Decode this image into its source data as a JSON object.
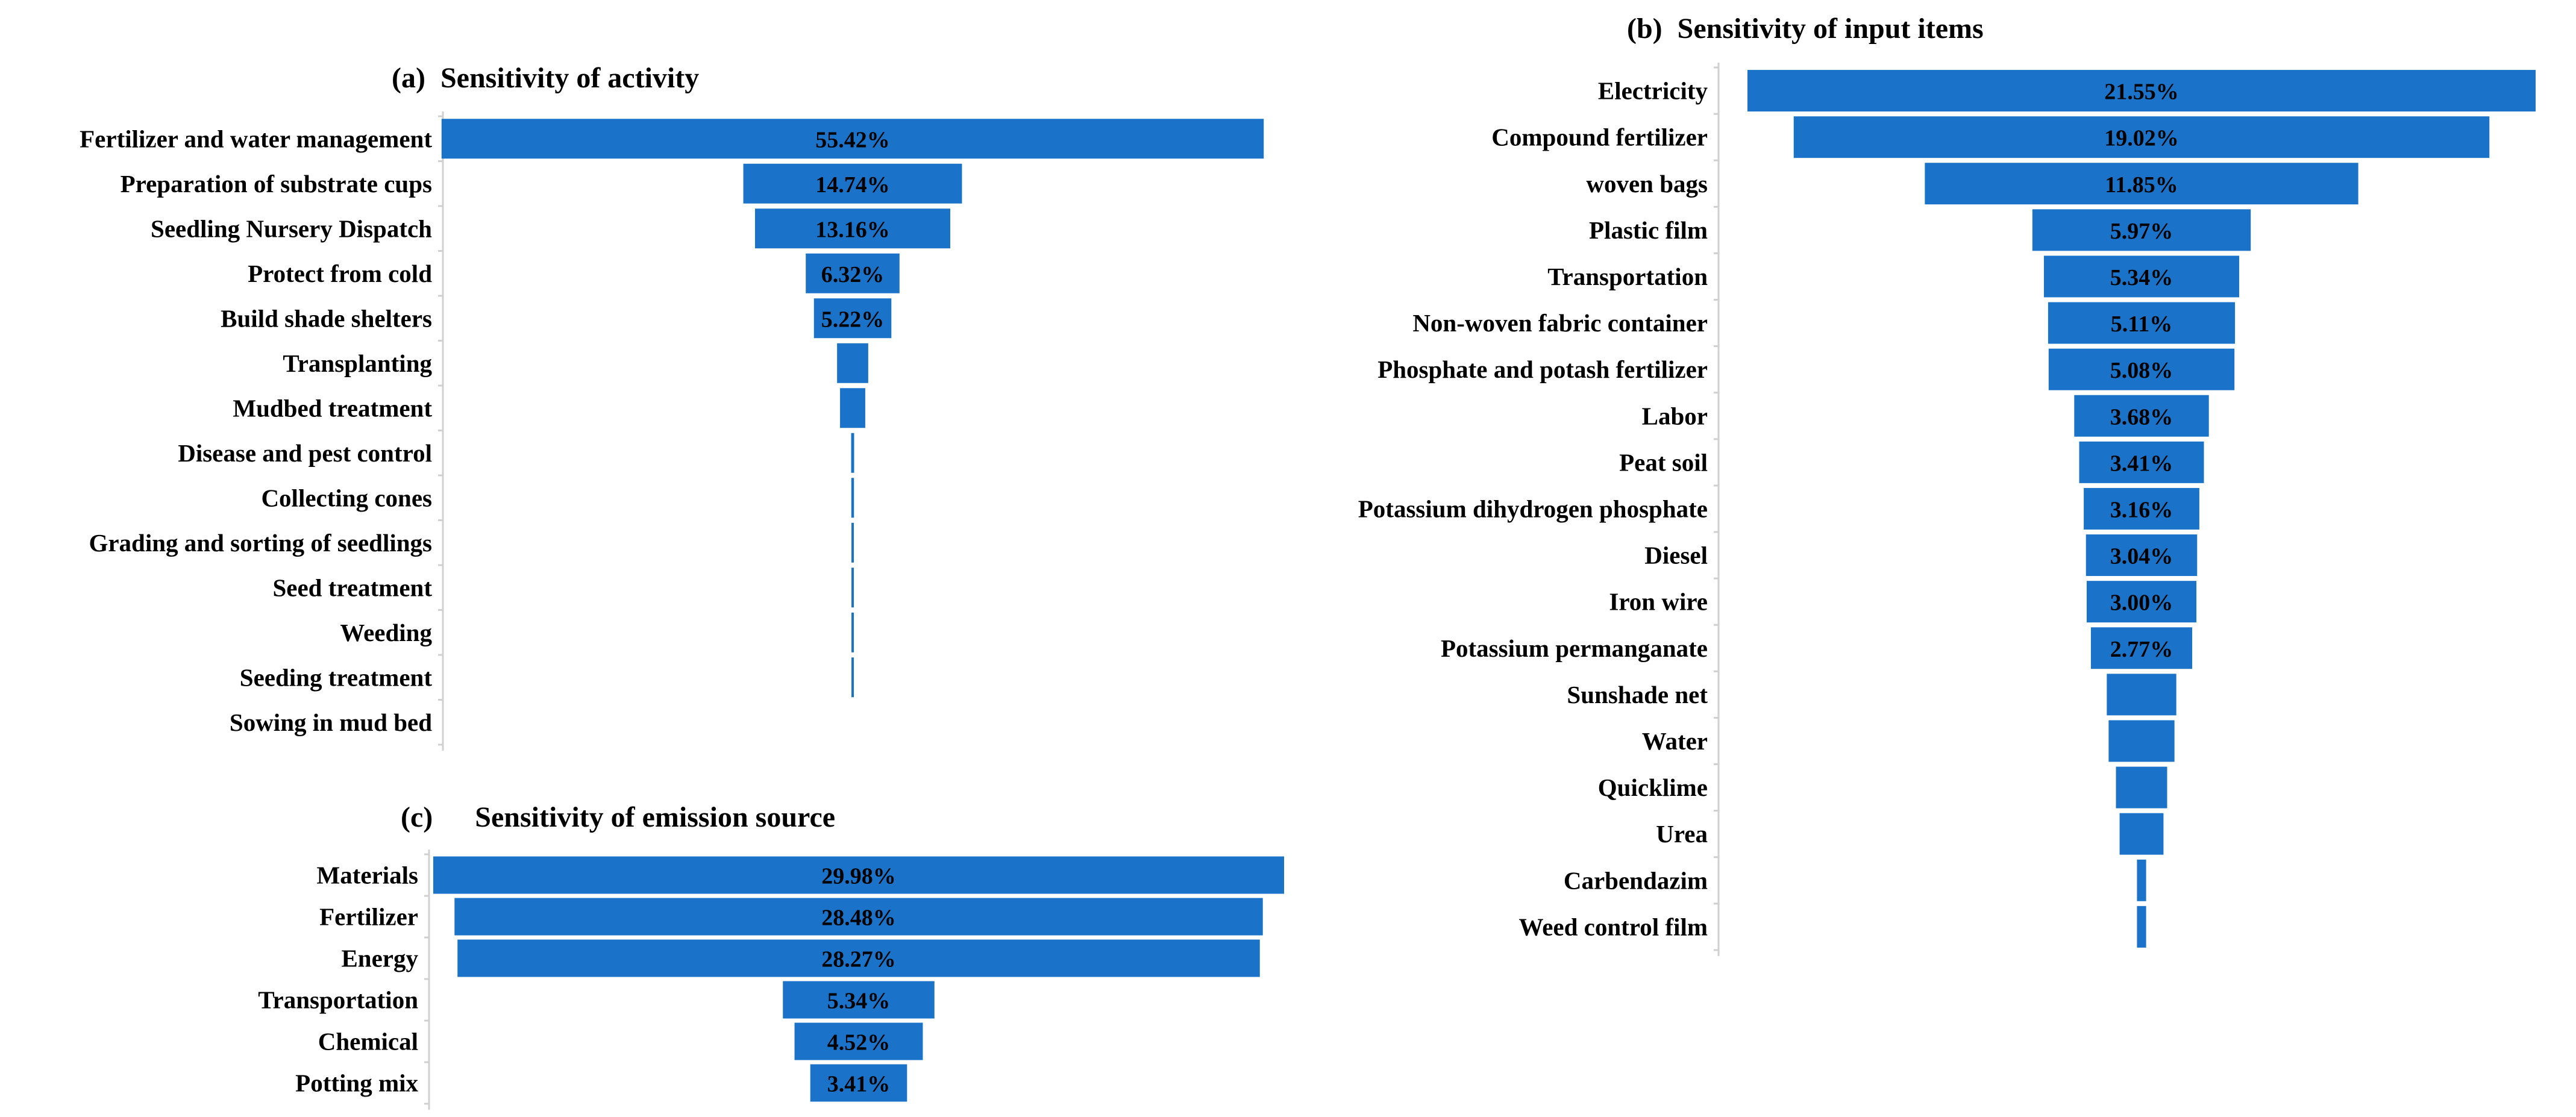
{
  "bar_color": "#1a73c8",
  "axis_color": "#d0d0d0",
  "chart_data": [
    {
      "type": "bar",
      "orientation": "horizontal",
      "style": "funnel-centered",
      "panel": "(a)",
      "title": "Sensitivity of activity",
      "categories": [
        "Fertilizer and water management",
        "Preparation of substrate cups",
        "Seedling Nursery Dispatch",
        "Protect from cold",
        "Build shade shelters",
        "Transplanting",
        "Mudbed treatment",
        "Disease and pest control",
        "Collecting cones",
        "Grading and sorting of seedlings",
        "Seed treatment",
        "Weeding",
        "Seeding treatment",
        "Sowing in mud bed"
      ],
      "values": [
        55.42,
        14.74,
        13.16,
        6.32,
        5.22,
        2.1,
        1.7,
        0.2,
        0.18,
        0.16,
        0.14,
        0.12,
        0.1,
        0.0
      ],
      "labels": [
        "55.42%",
        "14.74%",
        "13.16%",
        "6.32%",
        "5.22%",
        "",
        "",
        "",
        "",
        "",
        "",
        "",
        "",
        ""
      ]
    },
    {
      "type": "bar",
      "orientation": "horizontal",
      "style": "funnel-centered",
      "panel": "(b)",
      "title": "Sensitivity of input items",
      "categories": [
        "Electricity",
        "Compound fertilizer",
        "woven bags",
        "Plastic film",
        "Transportation",
        "Non-woven fabric container",
        "Phosphate and potash fertilizer",
        "Labor",
        "Peat soil",
        "Potassium dihydrogen phosphate",
        "Diesel",
        "Iron wire",
        "Potassium permanganate",
        "Sunshade net",
        "Water",
        "Quicklime",
        "Urea",
        "Carbendazim",
        "Weed control film"
      ],
      "values": [
        21.55,
        19.02,
        11.85,
        5.97,
        5.34,
        5.11,
        5.08,
        3.68,
        3.41,
        3.16,
        3.04,
        3.0,
        2.77,
        1.9,
        1.8,
        1.4,
        1.2,
        0.25,
        0.25
      ],
      "labels": [
        "21.55%",
        "19.02%",
        "11.85%",
        "5.97%",
        "5.34%",
        "5.11%",
        "5.08%",
        "3.68%",
        "3.41%",
        "3.16%",
        "3.04%",
        "3.00%",
        "2.77%",
        "",
        "",
        "",
        "",
        "",
        ""
      ]
    },
    {
      "type": "bar",
      "orientation": "horizontal",
      "style": "funnel-centered",
      "panel": "(c)",
      "title": "Sensitivity of emission source",
      "categories": [
        "Materials",
        "Fertilizer",
        "Energy",
        "Transportation",
        "Chemical",
        "Potting mix"
      ],
      "values": [
        29.98,
        28.48,
        28.27,
        5.34,
        4.52,
        3.41
      ],
      "labels": [
        "29.98%",
        "28.48%",
        "28.27%",
        "5.34%",
        "4.52%",
        "3.41%"
      ]
    }
  ]
}
